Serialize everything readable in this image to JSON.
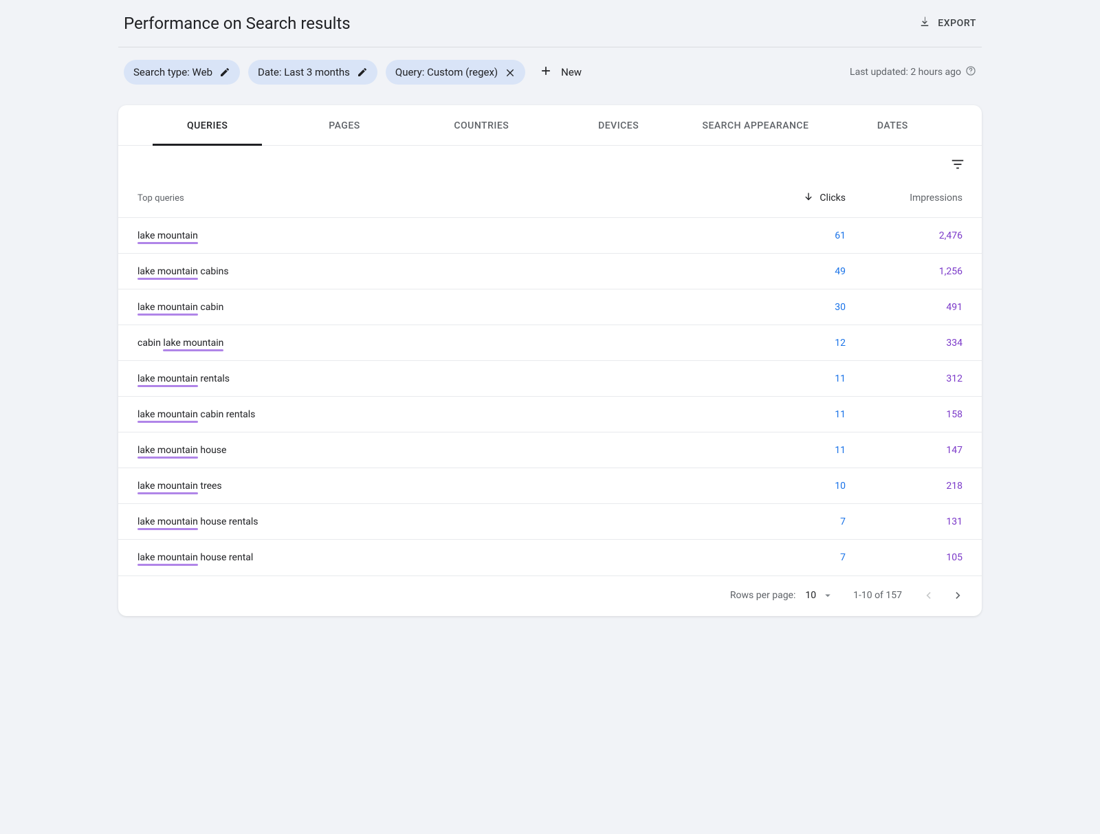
{
  "header": {
    "title": "Performance on Search results",
    "export_label": "EXPORT"
  },
  "filters": {
    "chips": [
      {
        "label": "Search type: Web",
        "icon": "pencil"
      },
      {
        "label": "Date: Last 3 months",
        "icon": "pencil"
      },
      {
        "label": "Query: Custom (regex)",
        "icon": "close"
      }
    ],
    "new_label": "New",
    "updated_label": "Last updated: 2 hours ago"
  },
  "tabs": [
    {
      "label": "QUERIES",
      "active": true
    },
    {
      "label": "PAGES",
      "active": false
    },
    {
      "label": "COUNTRIES",
      "active": false
    },
    {
      "label": "DEVICES",
      "active": false
    },
    {
      "label": "SEARCH APPEARANCE",
      "active": false
    },
    {
      "label": "DATES",
      "active": false
    }
  ],
  "table": {
    "columns": {
      "query_header": "Top queries",
      "clicks_header": "Clicks",
      "impressions_header": "Impressions"
    },
    "highlight_phrase": "lake mountain",
    "highlight_color": "#b085e8",
    "clicks_color": "#1a73e8",
    "impressions_color": "#7b39c9",
    "rows": [
      {
        "query": "lake mountain",
        "clicks": "61",
        "impressions": "2,476"
      },
      {
        "query": "lake mountain cabins",
        "clicks": "49",
        "impressions": "1,256"
      },
      {
        "query": "lake mountain cabin",
        "clicks": "30",
        "impressions": "491"
      },
      {
        "query": "cabin lake mountain",
        "clicks": "12",
        "impressions": "334"
      },
      {
        "query": "lake mountain rentals",
        "clicks": "11",
        "impressions": "312"
      },
      {
        "query": "lake mountain cabin rentals",
        "clicks": "11",
        "impressions": "158"
      },
      {
        "query": "lake mountain house",
        "clicks": "11",
        "impressions": "147"
      },
      {
        "query": "lake mountain trees",
        "clicks": "10",
        "impressions": "218"
      },
      {
        "query": "lake mountain house rentals",
        "clicks": "7",
        "impressions": "131"
      },
      {
        "query": "lake mountain house rental",
        "clicks": "7",
        "impressions": "105"
      }
    ]
  },
  "pager": {
    "rows_per_page_label": "Rows per page:",
    "rows_per_page_value": "10",
    "range_label": "1-10 of 157"
  },
  "colors": {
    "page_bg": "#f1f3f7",
    "chip_bg": "#d9e4f7",
    "border": "#e8eaed",
    "text_secondary": "#5f6368"
  }
}
